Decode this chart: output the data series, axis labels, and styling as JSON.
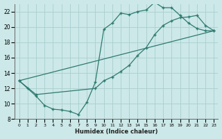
{
  "xlabel": "Humidex (Indice chaleur)",
  "bg_color": "#cce8e8",
  "line_color": "#2d7a6e",
  "grid_color": "#aacece",
  "xlim": [
    -0.5,
    23.5
  ],
  "ylim": [
    8,
    23
  ],
  "xticks": [
    0,
    1,
    2,
    3,
    4,
    5,
    6,
    7,
    8,
    9,
    10,
    11,
    12,
    13,
    14,
    15,
    16,
    17,
    18,
    19,
    20,
    21,
    22,
    23
  ],
  "yticks": [
    8,
    10,
    12,
    14,
    16,
    18,
    20,
    22
  ],
  "line1_x": [
    0,
    1,
    2,
    3,
    4,
    5,
    6,
    7,
    8,
    9,
    10,
    11,
    12,
    13,
    14,
    15,
    16,
    17,
    18,
    19,
    20,
    21,
    22,
    23
  ],
  "line1_y": [
    13.0,
    12.0,
    11.0,
    9.8,
    9.3,
    9.2,
    9.0,
    8.6,
    10.2,
    12.8,
    19.7,
    20.5,
    21.8,
    21.6,
    22.0,
    22.2,
    23.2,
    22.5,
    22.5,
    21.5,
    20.5,
    19.8,
    19.5,
    19.5
  ],
  "line2_x": [
    0,
    2,
    9,
    10,
    11,
    12,
    13,
    14,
    15,
    16,
    17,
    18,
    19,
    20,
    21,
    22,
    23
  ],
  "line2_y": [
    13.0,
    11.2,
    12.0,
    13.0,
    13.5,
    14.2,
    15.0,
    16.3,
    17.3,
    19.0,
    20.2,
    20.8,
    21.2,
    21.3,
    21.5,
    20.2,
    19.5
  ],
  "line3_x": [
    0,
    23
  ],
  "line3_y": [
    13.0,
    19.5
  ]
}
